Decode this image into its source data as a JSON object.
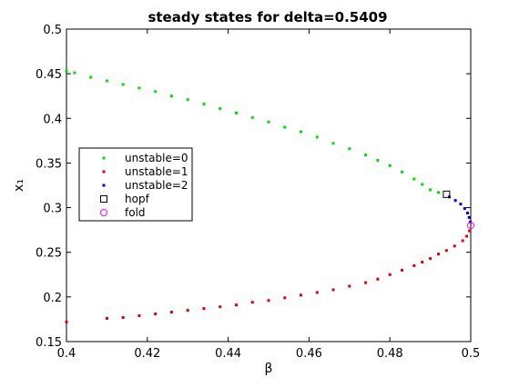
{
  "chart_data": {
    "type": "scatter",
    "title": "steady states for delta=0.5409",
    "xlabel": "β",
    "ylabel": "x₁",
    "xlim": [
      0.4,
      0.5
    ],
    "ylim": [
      0.15,
      0.5
    ],
    "xticks": [
      0.4,
      0.42,
      0.44,
      0.46,
      0.48,
      0.5
    ],
    "xtick_labels": [
      "0.4",
      "0.42",
      "0.44",
      "0.46",
      "0.48",
      "0.5"
    ],
    "yticks": [
      0.15,
      0.2,
      0.25,
      0.3,
      0.35,
      0.4,
      0.45,
      0.5
    ],
    "ytick_labels": [
      "0.15",
      "0.2",
      "0.25",
      "0.3",
      "0.35",
      "0.4",
      "0.45",
      "0.5"
    ],
    "grid": false,
    "legend_position": "center-left",
    "series": [
      {
        "name": "unstable=0",
        "color": "#00dd00",
        "marker": "dot",
        "points": [
          [
            0.4,
            0.453
          ],
          [
            0.402,
            0.451
          ],
          [
            0.406,
            0.446
          ],
          [
            0.41,
            0.442
          ],
          [
            0.414,
            0.438
          ],
          [
            0.418,
            0.434
          ],
          [
            0.422,
            0.43
          ],
          [
            0.426,
            0.425
          ],
          [
            0.43,
            0.421
          ],
          [
            0.434,
            0.416
          ],
          [
            0.438,
            0.411
          ],
          [
            0.442,
            0.406
          ],
          [
            0.446,
            0.401
          ],
          [
            0.45,
            0.396
          ],
          [
            0.454,
            0.39
          ],
          [
            0.458,
            0.385
          ],
          [
            0.462,
            0.379
          ],
          [
            0.466,
            0.372
          ],
          [
            0.47,
            0.366
          ],
          [
            0.474,
            0.359
          ],
          [
            0.477,
            0.353
          ],
          [
            0.48,
            0.347
          ],
          [
            0.483,
            0.34
          ],
          [
            0.486,
            0.332
          ],
          [
            0.488,
            0.326
          ],
          [
            0.49,
            0.32
          ],
          [
            0.492,
            0.317
          ]
        ]
      },
      {
        "name": "unstable=1",
        "color": "#dd0000",
        "marker": "dot",
        "points": [
          [
            0.4,
            0.172
          ],
          [
            0.41,
            0.176
          ],
          [
            0.414,
            0.177
          ],
          [
            0.418,
            0.179
          ],
          [
            0.422,
            0.181
          ],
          [
            0.426,
            0.183
          ],
          [
            0.43,
            0.185
          ],
          [
            0.434,
            0.187
          ],
          [
            0.438,
            0.189
          ],
          [
            0.442,
            0.191
          ],
          [
            0.446,
            0.194
          ],
          [
            0.45,
            0.196
          ],
          [
            0.454,
            0.199
          ],
          [
            0.458,
            0.202
          ],
          [
            0.462,
            0.205
          ],
          [
            0.466,
            0.208
          ],
          [
            0.47,
            0.212
          ],
          [
            0.474,
            0.216
          ],
          [
            0.477,
            0.22
          ],
          [
            0.48,
            0.225
          ],
          [
            0.483,
            0.23
          ],
          [
            0.486,
            0.235
          ],
          [
            0.488,
            0.239
          ],
          [
            0.49,
            0.243
          ],
          [
            0.492,
            0.248
          ],
          [
            0.494,
            0.252
          ],
          [
            0.496,
            0.257
          ],
          [
            0.498,
            0.263
          ],
          [
            0.499,
            0.268
          ],
          [
            0.4997,
            0.274
          ]
        ]
      },
      {
        "name": "unstable=2",
        "color": "#0000dd",
        "marker": "dot",
        "points": [
          [
            0.4947,
            0.312
          ],
          [
            0.4962,
            0.308
          ],
          [
            0.4975,
            0.304
          ],
          [
            0.4985,
            0.299
          ],
          [
            0.4992,
            0.294
          ],
          [
            0.4996,
            0.289
          ],
          [
            0.4999,
            0.284
          ]
        ]
      },
      {
        "name": "hopf",
        "color": "#000000",
        "marker": "square",
        "points": [
          [
            0.494,
            0.315
          ]
        ]
      },
      {
        "name": "fold",
        "color": "#ff00ff",
        "marker": "circle",
        "points": [
          [
            0.5,
            0.28
          ]
        ]
      }
    ]
  }
}
